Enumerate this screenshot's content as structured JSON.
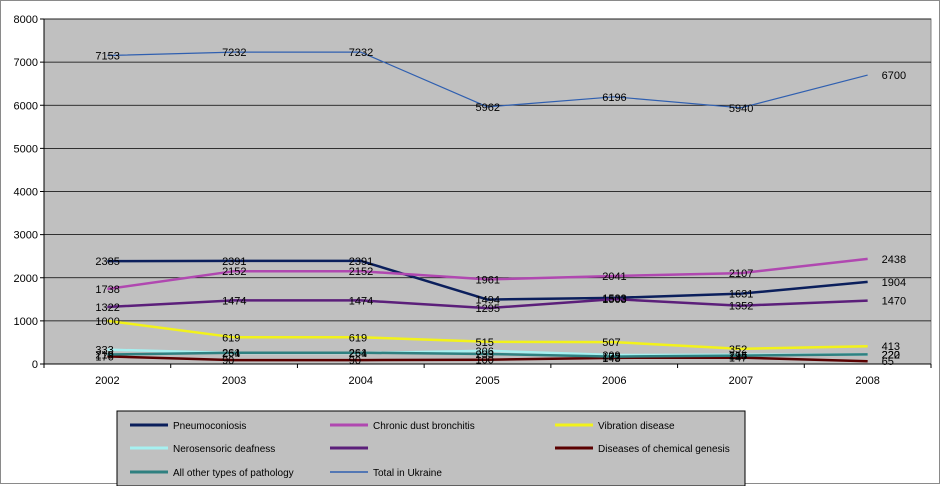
{
  "chart_data": {
    "type": "line",
    "categories": [
      "2002",
      "2003",
      "2004",
      "2005",
      "2006",
      "2007",
      "2008"
    ],
    "ylim": [
      0,
      8000
    ],
    "yticks": [
      0,
      1000,
      2000,
      3000,
      4000,
      5000,
      6000,
      7000,
      8000
    ],
    "grid": true,
    "legend_position": "bottom",
    "series": [
      {
        "name": "Pneumoconiosis",
        "color": "#0b1f5c",
        "width": 2.5,
        "values": [
          2385,
          2391,
          2391,
          1494,
          1533,
          1631,
          1904
        ],
        "labels": [
          "2385",
          "2391",
          "2391",
          "1494",
          "1533",
          "1631",
          "1904"
        ]
      },
      {
        "name": "Chronic dust bronchitis",
        "color": "#b048b0",
        "width": 2.5,
        "values": [
          1738,
          2152,
          2152,
          1961,
          2041,
          2107,
          2438
        ],
        "labels": [
          "1738",
          "2152",
          "2152",
          "1961",
          "2041",
          "2107",
          "2438"
        ]
      },
      {
        "name": "Vibration disease",
        "color": "#f2f21a",
        "width": 2.5,
        "values": [
          1000,
          619,
          619,
          515,
          507,
          352,
          413
        ],
        "labels": [
          "1000",
          "619",
          "619",
          "515",
          "507",
          "352",
          "413"
        ]
      },
      {
        "name": "Nerosensoric deafness",
        "color": "#a6f0f0",
        "width": 2.5,
        "values": [
          333,
          254,
          254,
          306,
          209,
          214,
          220
        ],
        "labels": [
          "333",
          "254",
          "254",
          "306",
          "209",
          "214",
          "220"
        ]
      },
      {
        "name": "",
        "color": "#5b1f7a",
        "width": 2.5,
        "values": [
          1322,
          1474,
          1474,
          1295,
          1503,
          1352,
          1470
        ],
        "labels": [
          "1322",
          "1474",
          "1474",
          "1295",
          "1503",
          "1352",
          "1470"
        ]
      },
      {
        "name": "Diseases of chemical genesis",
        "color": "#5a0000",
        "width": 2.5,
        "values": [
          176,
          90,
          90,
          100,
          143,
          147,
          65
        ],
        "labels": [
          "176",
          "90",
          "90",
          "100",
          "143",
          "147",
          "65"
        ]
      },
      {
        "name": "All other types of pathology",
        "color": "#2f8080",
        "width": 2.5,
        "values": [
          219,
          261,
          261,
          233,
          172,
          195,
          222
        ],
        "labels": [
          "219",
          "261",
          "261",
          "233",
          "172",
          "195",
          "222"
        ]
      },
      {
        "name": "Total in Ukraine",
        "color": "#2f5fb0",
        "width": 1.2,
        "values": [
          7153,
          7232,
          7232,
          5962,
          6196,
          5940,
          6700
        ],
        "labels": [
          "7153",
          "7232",
          "7232",
          "5962",
          "6196",
          "5940",
          "6700"
        ]
      }
    ]
  },
  "legend": {
    "rows": [
      [
        "Pneumoconiosis",
        "Chronic dust bronchitis",
        "Vibration disease"
      ],
      [
        "Nerosensoric deafness",
        "",
        "Diseases of chemical genesis"
      ],
      [
        "All other types of pathology",
        "Total in Ukraine"
      ]
    ]
  }
}
